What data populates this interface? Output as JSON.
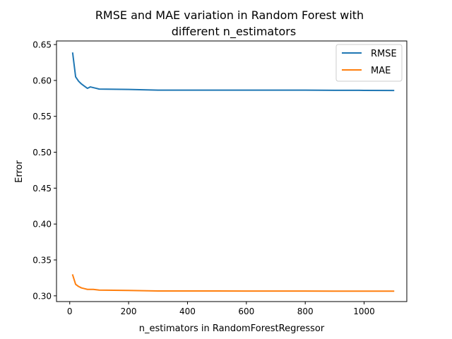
{
  "chart_data": {
    "type": "line",
    "title_lines": [
      "RMSE and MAE variation in Random Forest with",
      "different n_estimators"
    ],
    "xlabel": "n_estimators in RandomForestRegressor",
    "ylabel": "Error",
    "xlim": [
      -45,
      1145
    ],
    "ylim": [
      0.292,
      0.655
    ],
    "xticks": [
      0,
      200,
      400,
      600,
      800,
      1000
    ],
    "yticks": [
      0.3,
      0.35,
      0.4,
      0.45,
      0.5,
      0.55,
      0.6,
      0.65
    ],
    "ytick_labels": [
      "0.30",
      "0.35",
      "0.40",
      "0.45",
      "0.50",
      "0.55",
      "0.60",
      "0.65"
    ],
    "legend_position": "top-right",
    "series": [
      {
        "name": "RMSE",
        "color": "#1f77b4",
        "x": [
          10,
          20,
          30,
          40,
          50,
          60,
          70,
          80,
          90,
          100,
          200,
          300,
          400,
          500,
          600,
          700,
          800,
          900,
          1000,
          1100
        ],
        "y": [
          0.638,
          0.605,
          0.599,
          0.595,
          0.592,
          0.589,
          0.591,
          0.59,
          0.589,
          0.588,
          0.5875,
          0.5865,
          0.5865,
          0.5865,
          0.5865,
          0.5865,
          0.5865,
          0.5863,
          0.5862,
          0.586
        ]
      },
      {
        "name": "MAE",
        "color": "#ff7f0e",
        "x": [
          10,
          20,
          30,
          40,
          50,
          60,
          70,
          80,
          90,
          100,
          200,
          300,
          400,
          500,
          600,
          700,
          800,
          900,
          1000,
          1100
        ],
        "y": [
          0.329,
          0.316,
          0.313,
          0.311,
          0.31,
          0.309,
          0.309,
          0.309,
          0.3085,
          0.308,
          0.3075,
          0.3068,
          0.3067,
          0.3067,
          0.3066,
          0.3066,
          0.3066,
          0.3065,
          0.3065,
          0.3065
        ]
      }
    ]
  }
}
